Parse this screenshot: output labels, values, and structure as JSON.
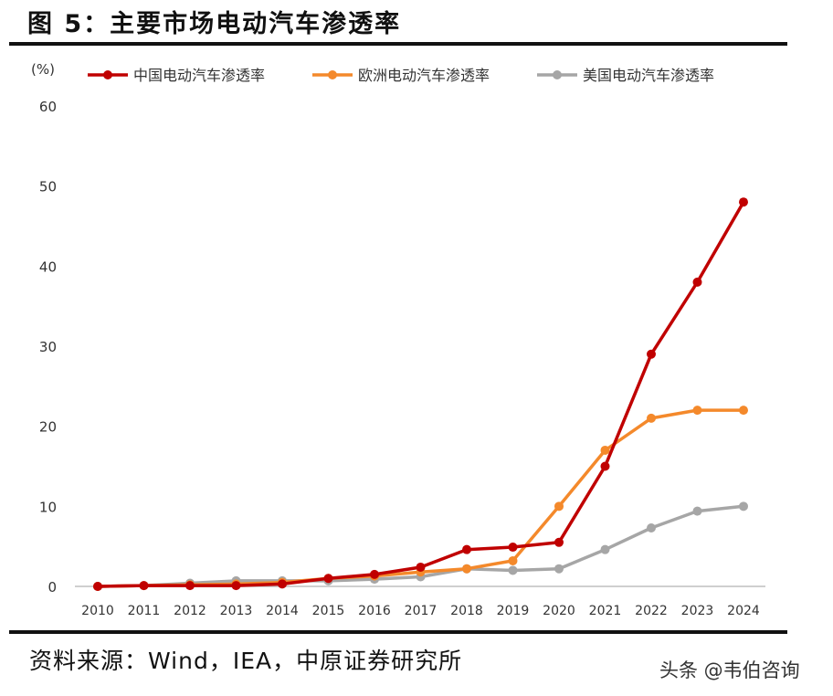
{
  "figure": {
    "title": "图 5：主要市场电动汽车渗透率",
    "source": "资料来源：Wind，IEA，中原证券研究所",
    "watermark": "头条 @韦伯咨询"
  },
  "chart_data": {
    "type": "line",
    "unit_label": "(%)",
    "x": [
      "2010",
      "2011",
      "2012",
      "2013",
      "2014",
      "2015",
      "2016",
      "2017",
      "2018",
      "2019",
      "2020",
      "2021",
      "2022",
      "2023",
      "2024"
    ],
    "ylim": [
      0,
      60
    ],
    "yticks": [
      0,
      10,
      20,
      30,
      40,
      50,
      60
    ],
    "grid": false,
    "legend_position": "top",
    "series": [
      {
        "name": "中国电动汽车渗透率",
        "color": "#c00000",
        "values": [
          0.0,
          0.1,
          0.1,
          0.1,
          0.3,
          1.0,
          1.5,
          2.4,
          4.6,
          4.9,
          5.5,
          15.0,
          29.0,
          38.0,
          48.0
        ]
      },
      {
        "name": "欧洲电动汽车渗透率",
        "color": "#f4892b",
        "values": [
          0.0,
          0.1,
          0.2,
          0.3,
          0.5,
          1.0,
          1.3,
          1.8,
          2.2,
          3.2,
          10.0,
          17.0,
          21.0,
          22.0,
          22.0
        ]
      },
      {
        "name": "美国电动汽车渗透率",
        "color": "#a6a6a6",
        "values": [
          0.0,
          0.1,
          0.4,
          0.7,
          0.7,
          0.7,
          0.9,
          1.2,
          2.2,
          2.0,
          2.2,
          4.6,
          7.3,
          9.4,
          10.0
        ]
      }
    ]
  }
}
